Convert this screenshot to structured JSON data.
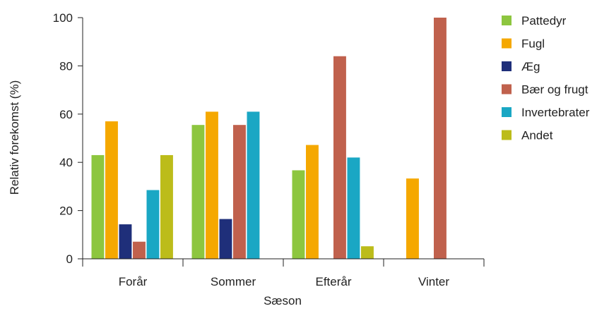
{
  "chart_data": {
    "type": "bar",
    "title": "",
    "xlabel": "Sæson",
    "ylabel": "Relativ forekomst (%)",
    "ylim": [
      0,
      100
    ],
    "yticks": [
      0,
      20,
      40,
      60,
      80,
      100
    ],
    "grid": false,
    "legend_position": "right",
    "categories": [
      "Forår",
      "Sommer",
      "Efterår",
      "Vinter"
    ],
    "series": [
      {
        "name": "Pattedyr",
        "color": "#8dc63f",
        "values": [
          43,
          55.5,
          36.7,
          null
        ]
      },
      {
        "name": "Fugl",
        "color": "#f5a800",
        "values": [
          57,
          61,
          47.2,
          33.3
        ]
      },
      {
        "name": "Æg",
        "color": "#1f2f7a",
        "values": [
          14.3,
          16.5,
          null,
          null
        ]
      },
      {
        "name": "Bær og frugt",
        "color": "#c0614d",
        "values": [
          7.1,
          55.5,
          84,
          100
        ]
      },
      {
        "name": "Invertebrater",
        "color": "#1aa7c4",
        "values": [
          28.5,
          61,
          42,
          null
        ]
      },
      {
        "name": "Andet",
        "color": "#bcbc1a",
        "values": [
          43,
          null,
          5.2,
          null
        ]
      }
    ]
  }
}
